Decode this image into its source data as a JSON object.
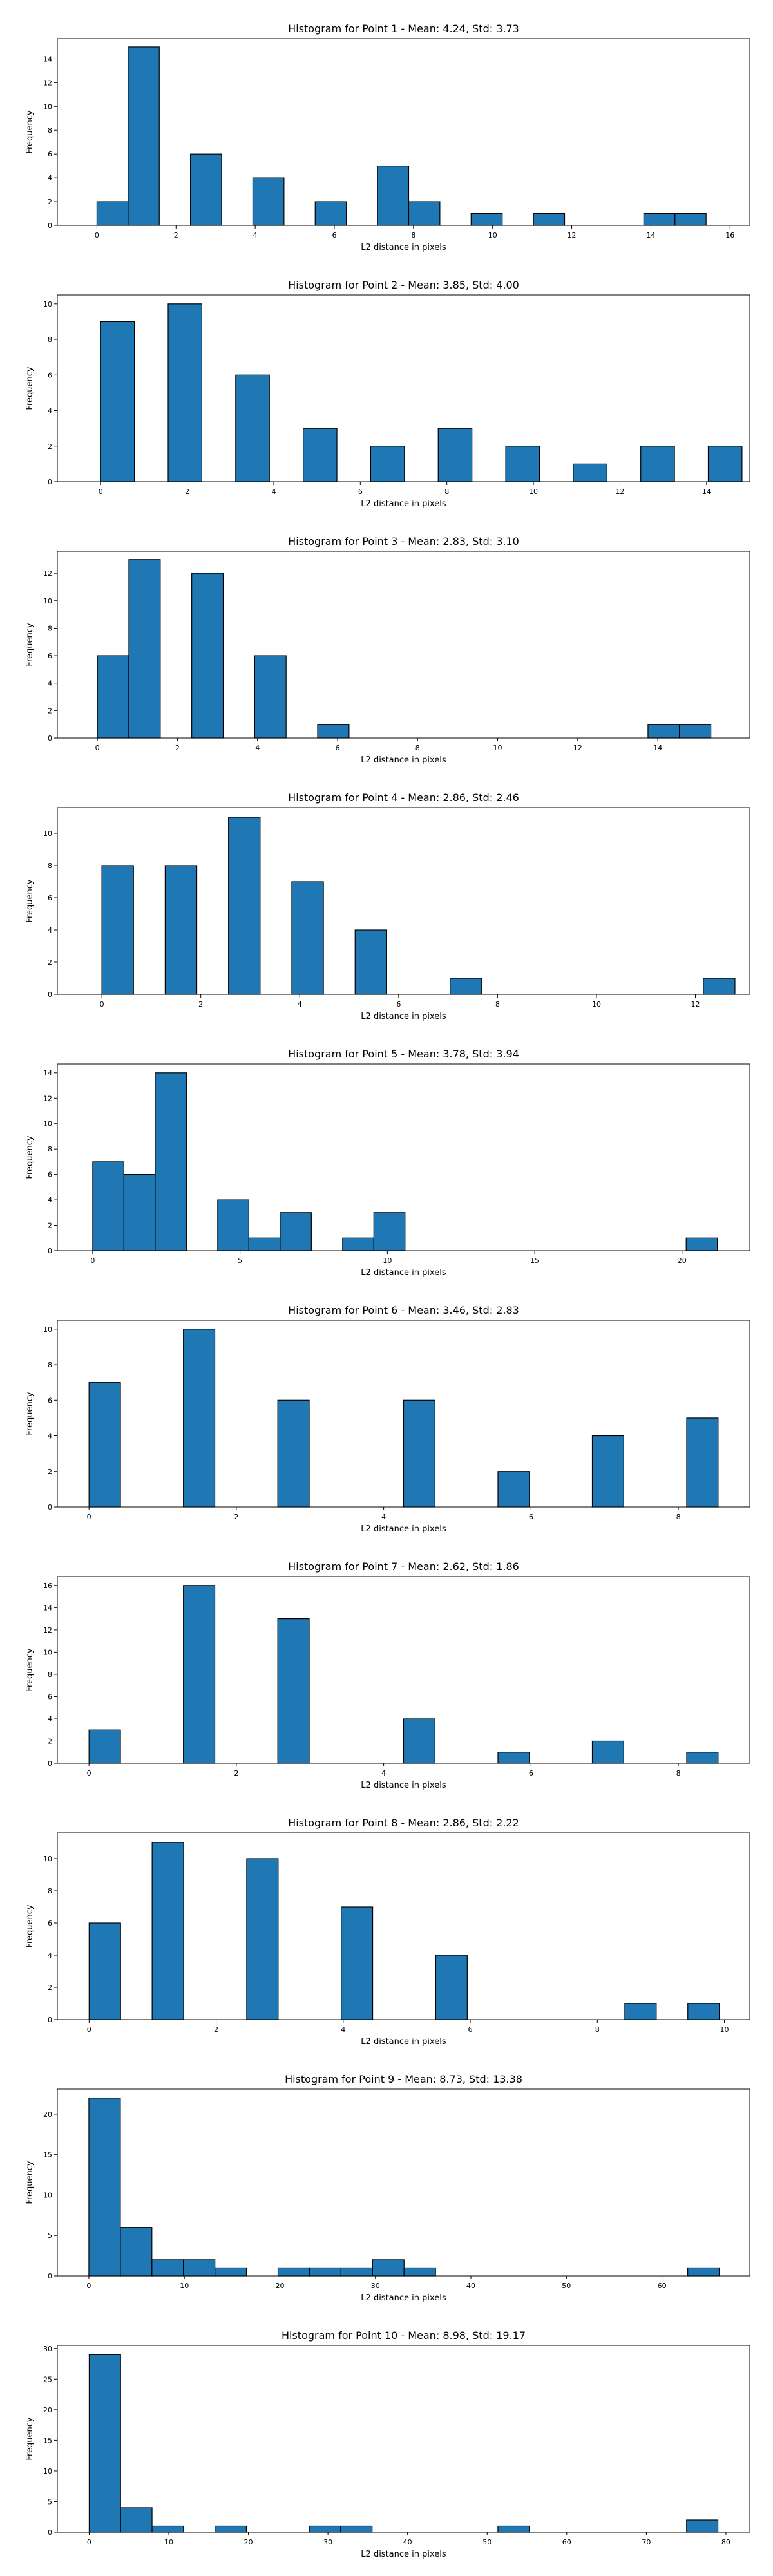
{
  "style": {
    "bar_color": "#1f77b4",
    "edge_color": "#000000",
    "background": "#ffffff"
  },
  "chart_data": [
    {
      "type": "bar",
      "title": "Histogram for Point 1 - Mean: 4.24, Std: 3.73",
      "xlabel": "L2 distance in pixels",
      "ylabel": "Frequency",
      "xlim": [
        -1.0,
        16.5
      ],
      "ylim": [
        0,
        15.7
      ],
      "xticks": [
        0,
        2,
        4,
        6,
        8,
        10,
        12,
        14,
        16
      ],
      "yticks": [
        0,
        2,
        4,
        6,
        8,
        10,
        12,
        14
      ],
      "bar_width": 0.788,
      "bars": [
        {
          "x": 0.0,
          "y": 2
        },
        {
          "x": 0.788,
          "y": 15
        },
        {
          "x": 2.364,
          "y": 6
        },
        {
          "x": 3.94,
          "y": 4
        },
        {
          "x": 5.516,
          "y": 2
        },
        {
          "x": 7.092,
          "y": 5
        },
        {
          "x": 7.88,
          "y": 2
        },
        {
          "x": 9.456,
          "y": 1
        },
        {
          "x": 11.032,
          "y": 1
        },
        {
          "x": 13.82,
          "y": 1
        },
        {
          "x": 14.608,
          "y": 1
        }
      ]
    },
    {
      "type": "bar",
      "title": "Histogram for Point 2 - Mean: 3.85, Std: 4.00",
      "xlabel": "L2 distance in pixels",
      "ylabel": "Frequency",
      "xlim": [
        -1.0,
        15.0
      ],
      "ylim": [
        0,
        10.5
      ],
      "xticks": [
        0,
        2,
        4,
        6,
        8,
        10,
        12,
        14
      ],
      "yticks": [
        0,
        2,
        4,
        6,
        8,
        10
      ],
      "bar_width": 0.78,
      "bars": [
        {
          "x": 0.0,
          "y": 9
        },
        {
          "x": 1.56,
          "y": 10
        },
        {
          "x": 3.12,
          "y": 6
        },
        {
          "x": 4.68,
          "y": 3
        },
        {
          "x": 6.24,
          "y": 2
        },
        {
          "x": 7.8,
          "y": 3
        },
        {
          "x": 9.36,
          "y": 2
        },
        {
          "x": 10.92,
          "y": 1
        },
        {
          "x": 12.48,
          "y": 2
        },
        {
          "x": 14.04,
          "y": 2
        }
      ]
    },
    {
      "type": "bar",
      "title": "Histogram for Point 3 - Mean: 2.83, Std: 3.10",
      "xlabel": "L2 distance in pixels",
      "ylabel": "Frequency",
      "xlim": [
        -1.0,
        16.3
      ],
      "ylim": [
        0,
        13.6
      ],
      "xticks": [
        0,
        2,
        4,
        6,
        8,
        10,
        12,
        14
      ],
      "yticks": [
        0,
        2,
        4,
        6,
        8,
        10,
        12
      ],
      "bar_width": 0.786,
      "bars": [
        {
          "x": 0.0,
          "y": 6
        },
        {
          "x": 0.786,
          "y": 13
        },
        {
          "x": 2.358,
          "y": 12
        },
        {
          "x": 3.93,
          "y": 6
        },
        {
          "x": 5.502,
          "y": 1
        },
        {
          "x": 13.756,
          "y": 1
        },
        {
          "x": 14.542,
          "y": 1
        }
      ]
    },
    {
      "type": "bar",
      "title": "Histogram for Point 4 - Mean: 2.86, Std: 2.46",
      "xlabel": "L2 distance in pixels",
      "ylabel": "Frequency",
      "xlim": [
        -0.9,
        13.1
      ],
      "ylim": [
        0,
        11.6
      ],
      "xticks": [
        0,
        2,
        4,
        6,
        8,
        10,
        12
      ],
      "yticks": [
        0,
        2,
        4,
        6,
        8,
        10
      ],
      "bar_width": 0.64,
      "bars": [
        {
          "x": 0.0,
          "y": 8
        },
        {
          "x": 1.28,
          "y": 8
        },
        {
          "x": 2.56,
          "y": 11
        },
        {
          "x": 3.84,
          "y": 7
        },
        {
          "x": 5.12,
          "y": 4
        },
        {
          "x": 7.04,
          "y": 1
        },
        {
          "x": 12.16,
          "y": 1
        }
      ]
    },
    {
      "type": "bar",
      "title": "Histogram for Point 5 - Mean: 3.78, Std: 3.94",
      "xlabel": "L2 distance in pixels",
      "ylabel": "Frequency",
      "xlim": [
        -1.2,
        22.3
      ],
      "ylim": [
        0,
        14.7
      ],
      "xticks": [
        0,
        5,
        10,
        15,
        20
      ],
      "yticks": [
        0,
        2,
        4,
        6,
        8,
        10,
        12,
        14
      ],
      "bar_width": 1.06,
      "bars": [
        {
          "x": 0.0,
          "y": 7
        },
        {
          "x": 1.06,
          "y": 6
        },
        {
          "x": 2.12,
          "y": 14
        },
        {
          "x": 4.24,
          "y": 4
        },
        {
          "x": 5.3,
          "y": 1
        },
        {
          "x": 6.36,
          "y": 3
        },
        {
          "x": 8.48,
          "y": 1
        },
        {
          "x": 9.54,
          "y": 3
        },
        {
          "x": 20.14,
          "y": 1
        }
      ]
    },
    {
      "type": "bar",
      "title": "Histogram for Point 6 - Mean: 3.46, Std: 2.83",
      "xlabel": "L2 distance in pixels",
      "ylabel": "Frequency",
      "xlim": [
        -0.43,
        8.97
      ],
      "ylim": [
        0,
        10.5
      ],
      "xticks": [
        0,
        2,
        4,
        6,
        8
      ],
      "yticks": [
        0,
        2,
        4,
        6,
        8,
        10
      ],
      "bar_width": 0.427,
      "bars": [
        {
          "x": 0.0,
          "y": 7
        },
        {
          "x": 1.281,
          "y": 10
        },
        {
          "x": 2.562,
          "y": 6
        },
        {
          "x": 4.27,
          "y": 6
        },
        {
          "x": 5.551,
          "y": 2
        },
        {
          "x": 6.832,
          "y": 4
        },
        {
          "x": 8.113,
          "y": 5
        }
      ]
    },
    {
      "type": "bar",
      "title": "Histogram for Point 7 - Mean: 2.62, Std: 1.86",
      "xlabel": "L2 distance in pixels",
      "ylabel": "Frequency",
      "xlim": [
        -0.43,
        8.97
      ],
      "ylim": [
        0,
        16.8
      ],
      "xticks": [
        0,
        2,
        4,
        6,
        8
      ],
      "yticks": [
        0,
        2,
        4,
        6,
        8,
        10,
        12,
        14,
        16
      ],
      "bar_width": 0.427,
      "bars": [
        {
          "x": 0.0,
          "y": 3
        },
        {
          "x": 1.281,
          "y": 16
        },
        {
          "x": 2.562,
          "y": 13
        },
        {
          "x": 4.27,
          "y": 4
        },
        {
          "x": 5.551,
          "y": 1
        },
        {
          "x": 6.832,
          "y": 2
        },
        {
          "x": 8.113,
          "y": 1
        }
      ]
    },
    {
      "type": "bar",
      "title": "Histogram for Point 8 - Mean: 2.86, Std: 2.22",
      "xlabel": "L2 distance in pixels",
      "ylabel": "Frequency",
      "xlim": [
        -0.5,
        10.4
      ],
      "ylim": [
        0,
        11.6
      ],
      "xticks": [
        0,
        2,
        4,
        6,
        8,
        10
      ],
      "yticks": [
        0,
        2,
        4,
        6,
        8,
        10
      ],
      "bar_width": 0.496,
      "bars": [
        {
          "x": 0.0,
          "y": 6
        },
        {
          "x": 0.992,
          "y": 11
        },
        {
          "x": 2.48,
          "y": 10
        },
        {
          "x": 3.968,
          "y": 7
        },
        {
          "x": 5.456,
          "y": 4
        },
        {
          "x": 8.432,
          "y": 1
        },
        {
          "x": 9.424,
          "y": 1
        }
      ]
    },
    {
      "type": "bar",
      "title": "Histogram for Point 9 - Mean: 8.73, Std: 13.38",
      "xlabel": "L2 distance in pixels",
      "ylabel": "Frequency",
      "xlim": [
        -3.3,
        69.2
      ],
      "ylim": [
        0,
        23.1
      ],
      "xticks": [
        0,
        10,
        20,
        30,
        40,
        50,
        60
      ],
      "yticks": [
        0,
        5,
        10,
        15,
        20
      ],
      "bar_width": 3.3,
      "bars": [
        {
          "x": 0.0,
          "y": 22
        },
        {
          "x": 3.3,
          "y": 6
        },
        {
          "x": 6.6,
          "y": 2
        },
        {
          "x": 9.9,
          "y": 2
        },
        {
          "x": 13.2,
          "y": 1
        },
        {
          "x": 19.8,
          "y": 1
        },
        {
          "x": 23.1,
          "y": 1
        },
        {
          "x": 26.4,
          "y": 1
        },
        {
          "x": 29.7,
          "y": 2
        },
        {
          "x": 33.0,
          "y": 1
        },
        {
          "x": 62.7,
          "y": 1
        }
      ]
    },
    {
      "type": "bar",
      "title": "Histogram for Point 10 - Mean: 8.98, Std: 19.17",
      "xlabel": "L2 distance in pixels",
      "ylabel": "Frequency",
      "xlim": [
        -4.0,
        83.0
      ],
      "ylim": [
        0,
        30.5
      ],
      "xticks": [
        0,
        10,
        20,
        30,
        40,
        50,
        60,
        70,
        80
      ],
      "yticks": [
        0,
        5,
        10,
        15,
        20,
        25,
        30
      ],
      "bar_width": 3.95,
      "bars": [
        {
          "x": 0.0,
          "y": 29
        },
        {
          "x": 3.95,
          "y": 4
        },
        {
          "x": 7.9,
          "y": 1
        },
        {
          "x": 15.8,
          "y": 1
        },
        {
          "x": 27.65,
          "y": 1
        },
        {
          "x": 31.6,
          "y": 1
        },
        {
          "x": 51.35,
          "y": 1
        },
        {
          "x": 75.05,
          "y": 2
        }
      ]
    }
  ]
}
